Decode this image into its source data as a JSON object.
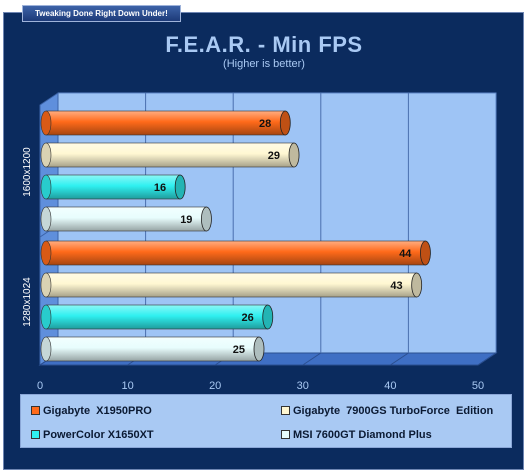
{
  "header": {
    "tagline": "Tweaking Done Right Down Under!"
  },
  "chart_data": {
    "type": "bar",
    "orientation": "horizontal",
    "title": "F.E.A.R. - Min FPS",
    "subtitle": "(Higher is better)",
    "categories": [
      "1600x1200",
      "1280x1024"
    ],
    "series": [
      {
        "name": "Gigabyte  X1950PRO",
        "values": [
          28,
          44
        ],
        "color": "#ff6a1a"
      },
      {
        "name": "Gigabyte  7900GS TurboForce  Edition",
        "values": [
          29,
          43
        ],
        "color": "#fff7d2"
      },
      {
        "name": "PowerColor X1650XT",
        "values": [
          16,
          26
        ],
        "color": "#2ff0f0"
      },
      {
        "name": "MSI 7600GT Diamond Plus",
        "values": [
          19,
          25
        ],
        "color": "#e8fdfd"
      }
    ],
    "xlim": [
      0,
      50
    ],
    "xticks": [
      "0",
      "10",
      "20",
      "30",
      "40",
      "50"
    ],
    "grid": true,
    "data_labels": true,
    "legend_position": "bottom",
    "colors": {
      "frame": "#0b2b5e",
      "plot_wall": "#9ec4f5",
      "plot_floor": "#3f6fc4",
      "text_light": "#a9c9f3"
    }
  }
}
